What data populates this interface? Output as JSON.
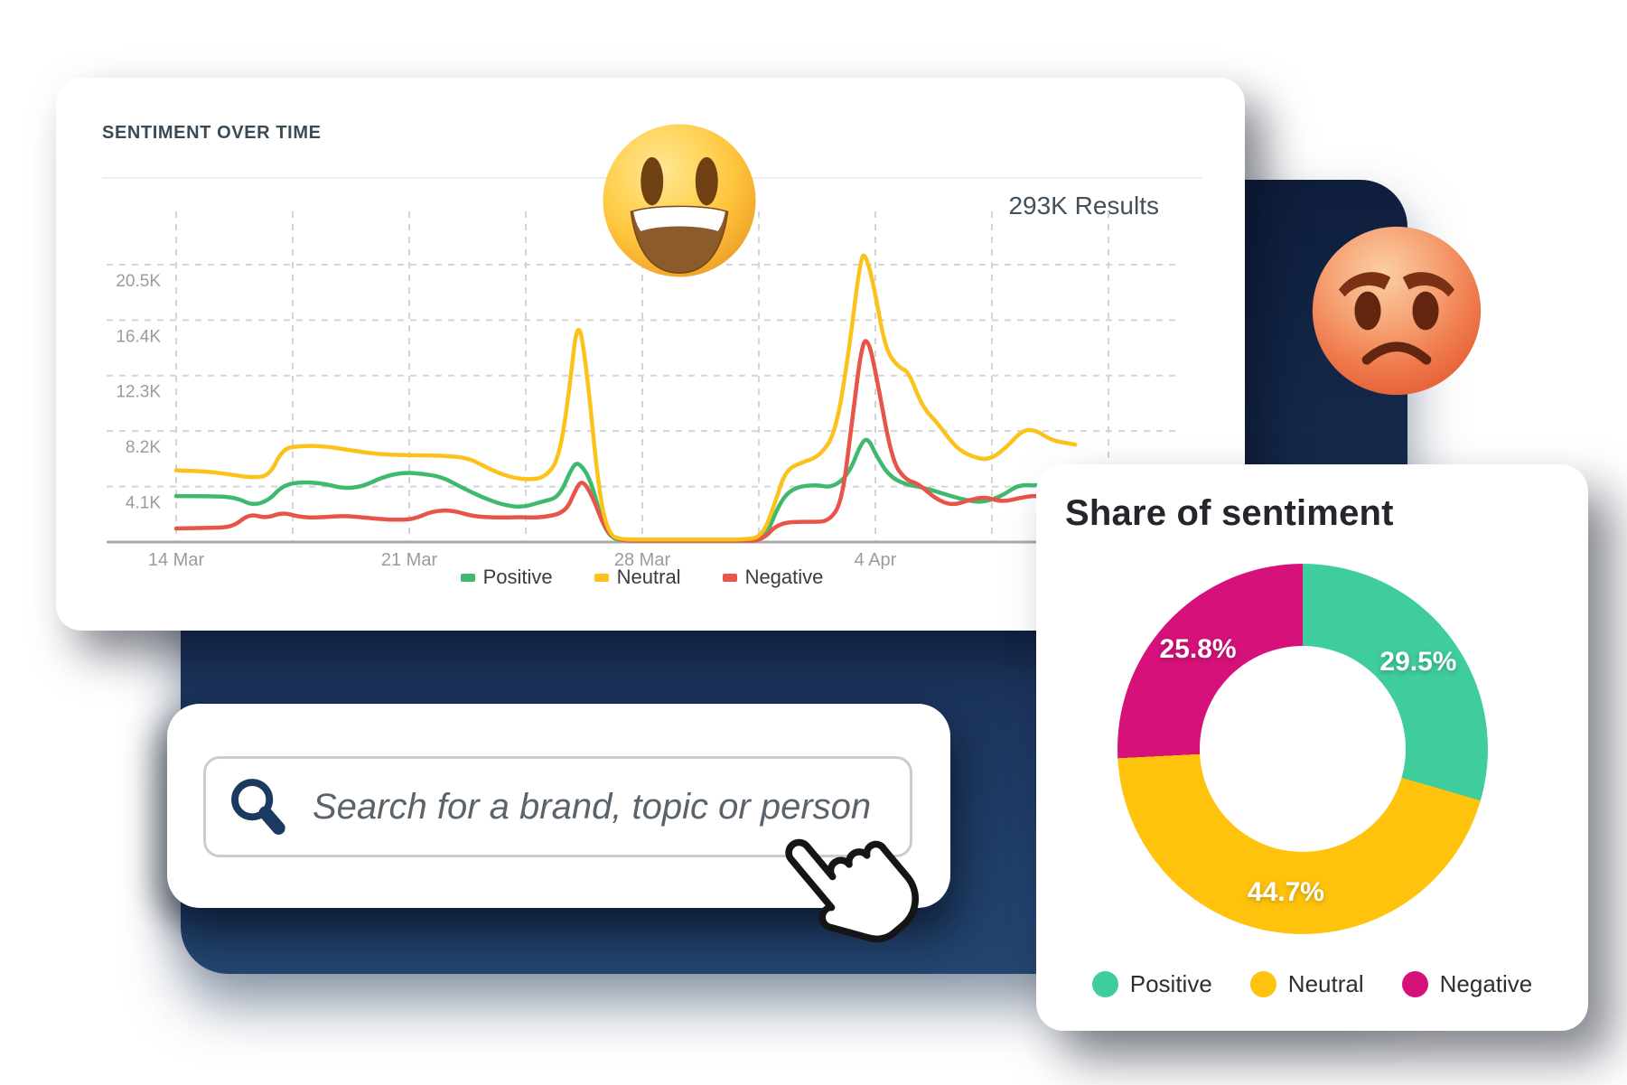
{
  "colors": {
    "navy_top": "#0f1e3c",
    "navy_bottom": "#24456f",
    "positive_line": "#3FB96D",
    "neutral_line": "#FCC21C",
    "negative_line": "#E8534A",
    "donut_positive": "#3FCD9E",
    "donut_neutral": "#FFC30D",
    "donut_negative": "#D6117A",
    "heading_text": "#3B4A54",
    "axis_text": "#9B9B9B",
    "magnifier": "#1C3A5F"
  },
  "sentiment_card": {
    "title": "SENTIMENT OVER TIME",
    "results_label": "293K Results",
    "legend": [
      {
        "label": "Positive",
        "color": "#3FB96D"
      },
      {
        "label": "Neutral",
        "color": "#FCC21C"
      },
      {
        "label": "Negative",
        "color": "#E8534A"
      }
    ]
  },
  "search": {
    "placeholder": "Search for a brand, topic or person"
  },
  "share_card": {
    "title": "Share of sentiment"
  },
  "emojis": [
    {
      "name": "grinning-face",
      "unicode": "😃"
    },
    {
      "name": "angry-face",
      "unicode": "😡"
    }
  ],
  "chart_data": [
    {
      "type": "line",
      "title": "Sentiment over time",
      "grid": "dashed",
      "legend_position": "bottom",
      "x_axis": {
        "tick_labels": [
          "14 Mar",
          "21 Mar",
          "28 Mar",
          "4 Apr"
        ],
        "labeled_grid_index": [
          0,
          2,
          4,
          6
        ],
        "grid_line_count": 9,
        "grid_spacing_days": 3.5,
        "start_date": "14 Mar"
      },
      "y_axis": {
        "tick_labels": [
          "20.5K",
          "16.4K",
          "12.3K",
          "8.2K",
          "4.1K"
        ],
        "tick_values_k": [
          20.5,
          16.4,
          12.3,
          8.2,
          4.1
        ],
        "min": 0,
        "max_k": 24.6,
        "unit": "results (thousands)"
      },
      "series": [
        {
          "name": "Positive",
          "color": "#3FB96D",
          "points_day_value_k": [
            [
              0,
              3.4
            ],
            [
              1,
              3.4
            ],
            [
              1.8,
              3.3
            ],
            [
              2.3,
              2.7
            ],
            [
              2.8,
              3.1
            ],
            [
              3.2,
              4.2
            ],
            [
              3.8,
              4.45
            ],
            [
              4.5,
              4.3
            ],
            [
              5,
              3.95
            ],
            [
              5.6,
              4.1
            ],
            [
              6.2,
              4.8
            ],
            [
              6.8,
              5.15
            ],
            [
              7.4,
              5.05
            ],
            [
              8,
              4.8
            ],
            [
              8.6,
              4.0
            ],
            [
              9.2,
              3.3
            ],
            [
              9.8,
              2.75
            ],
            [
              10.4,
              2.55
            ],
            [
              11,
              3.0
            ],
            [
              11.5,
              3.3
            ],
            [
              11.9,
              5.6
            ],
            [
              12.1,
              5.9
            ],
            [
              12.45,
              4.6
            ],
            [
              12.8,
              1.4
            ],
            [
              13.1,
              0.2
            ],
            [
              13.6,
              0.12
            ],
            [
              14.5,
              0.12
            ],
            [
              15.5,
              0.12
            ],
            [
              16.5,
              0.12
            ],
            [
              17.2,
              0.12
            ],
            [
              17.7,
              0.3
            ],
            [
              18.1,
              2.8
            ],
            [
              18.5,
              4.0
            ],
            [
              19.2,
              4.25
            ],
            [
              19.7,
              4.0
            ],
            [
              20.2,
              5.0
            ],
            [
              20.6,
              7.5
            ],
            [
              20.8,
              7.6
            ],
            [
              21.0,
              6.5
            ],
            [
              21.4,
              4.9
            ],
            [
              21.9,
              4.25
            ],
            [
              22.4,
              4.05
            ],
            [
              23,
              3.6
            ],
            [
              23.6,
              3.15
            ],
            [
              24.2,
              2.9
            ],
            [
              24.8,
              3.4
            ],
            [
              25.3,
              4.25
            ],
            [
              25.9,
              4.15
            ],
            [
              26.5,
              4.5
            ],
            [
              27,
              4.5
            ]
          ]
        },
        {
          "name": "Neutral",
          "color": "#FCC21C",
          "points_day_value_k": [
            [
              0,
              5.3
            ],
            [
              0.8,
              5.25
            ],
            [
              1.6,
              5.0
            ],
            [
              2.3,
              4.75
            ],
            [
              2.8,
              4.9
            ],
            [
              3.2,
              6.9
            ],
            [
              3.7,
              7.1
            ],
            [
              4.4,
              7.1
            ],
            [
              5.2,
              6.8
            ],
            [
              6,
              6.5
            ],
            [
              7,
              6.4
            ],
            [
              8,
              6.4
            ],
            [
              8.8,
              6.2
            ],
            [
              9.4,
              5.4
            ],
            [
              10,
              4.8
            ],
            [
              10.6,
              4.6
            ],
            [
              11.1,
              4.8
            ],
            [
              11.5,
              6.2
            ],
            [
              11.8,
              11.0
            ],
            [
              12.05,
              16.7
            ],
            [
              12.3,
              13.5
            ],
            [
              12.7,
              3.5
            ],
            [
              13,
              0.5
            ],
            [
              13.4,
              0.18
            ],
            [
              14,
              0.18
            ],
            [
              15,
              0.18
            ],
            [
              16,
              0.18
            ],
            [
              17,
              0.18
            ],
            [
              17.6,
              0.35
            ],
            [
              18,
              3.0
            ],
            [
              18.3,
              5.3
            ],
            [
              18.8,
              5.9
            ],
            [
              19.3,
              6.3
            ],
            [
              19.8,
              8.0
            ],
            [
              20.2,
              14.0
            ],
            [
              20.55,
              21.0
            ],
            [
              20.7,
              21.3
            ],
            [
              20.95,
              19.0
            ],
            [
              21.3,
              14.2
            ],
            [
              21.7,
              12.9
            ],
            [
              22,
              12.6
            ],
            [
              22.4,
              10.0
            ],
            [
              22.9,
              8.7
            ],
            [
              23.4,
              7.0
            ],
            [
              23.9,
              6.3
            ],
            [
              24.4,
              6.05
            ],
            [
              24.9,
              6.9
            ],
            [
              25.4,
              8.25
            ],
            [
              25.8,
              8.3
            ],
            [
              26.3,
              7.5
            ],
            [
              26.8,
              7.3
            ],
            [
              27,
              7.2
            ]
          ]
        },
        {
          "name": "Negative",
          "color": "#E8534A",
          "points_day_value_k": [
            [
              0,
              1.0
            ],
            [
              1,
              1.05
            ],
            [
              1.7,
              1.1
            ],
            [
              2.2,
              2.1
            ],
            [
              2.7,
              1.75
            ],
            [
              3.2,
              2.2
            ],
            [
              3.7,
              1.85
            ],
            [
              4.3,
              1.8
            ],
            [
              5,
              1.95
            ],
            [
              5.7,
              1.8
            ],
            [
              6.4,
              1.65
            ],
            [
              7.1,
              1.65
            ],
            [
              7.7,
              2.3
            ],
            [
              8.3,
              2.35
            ],
            [
              8.9,
              1.9
            ],
            [
              9.6,
              1.8
            ],
            [
              10.3,
              1.85
            ],
            [
              11,
              1.8
            ],
            [
              11.7,
              2.2
            ],
            [
              12.0,
              3.9
            ],
            [
              12.2,
              4.6
            ],
            [
              12.5,
              3.4
            ],
            [
              12.9,
              0.8
            ],
            [
              13.3,
              0.12
            ],
            [
              14,
              0.1
            ],
            [
              15,
              0.1
            ],
            [
              16,
              0.1
            ],
            [
              17,
              0.1
            ],
            [
              17.6,
              0.12
            ],
            [
              18.1,
              1.45
            ],
            [
              19,
              1.5
            ],
            [
              19.6,
              1.5
            ],
            [
              20.0,
              3.0
            ],
            [
              20.3,
              9.0
            ],
            [
              20.6,
              14.8
            ],
            [
              20.8,
              14.9
            ],
            [
              21.05,
              12.0
            ],
            [
              21.5,
              6.0
            ],
            [
              21.9,
              4.6
            ],
            [
              22.3,
              4.3
            ],
            [
              22.8,
              3.2
            ],
            [
              23.3,
              2.7
            ],
            [
              23.8,
              3.1
            ],
            [
              24.3,
              3.35
            ],
            [
              24.8,
              2.95
            ],
            [
              25.4,
              3.3
            ],
            [
              25.9,
              3.45
            ],
            [
              26.4,
              3.0
            ],
            [
              27,
              3.3
            ]
          ]
        }
      ]
    },
    {
      "type": "pie",
      "donut": true,
      "title": "Share of sentiment",
      "legend_position": "bottom",
      "slices": [
        {
          "label": "Positive",
          "value": 29.5,
          "display": "29.5%",
          "color": "#3FCD9E"
        },
        {
          "label": "Neutral",
          "value": 44.7,
          "display": "44.7%",
          "color": "#FFC30D"
        },
        {
          "label": "Negative",
          "value": 25.8,
          "display": "25.8%",
          "color": "#D6117A"
        }
      ]
    }
  ]
}
